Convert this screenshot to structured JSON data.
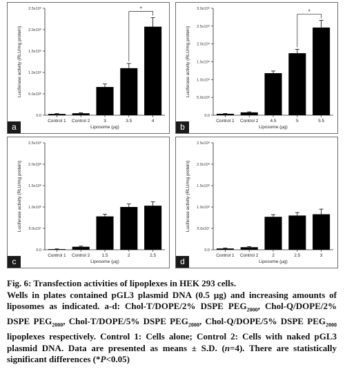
{
  "panels": [
    {
      "letter": "a",
      "ylabel": "Luciferase activity (RLU/mg protein)",
      "xlabel": "Liposome (µg)",
      "ytick_labels": [
        "0.0",
        "5.0x10⁸",
        "1.0x10⁹",
        "1.5x10⁹",
        "2.0x10⁹",
        "2.5x10⁹"
      ],
      "sig_label": "*",
      "color": "#000000"
    },
    {
      "letter": "b",
      "ylabel": "Luciferase activity (RLU/mg protein)",
      "xlabel": "Liposome (µg)",
      "ytick_labels": [
        "0.0",
        "5.0x10⁸",
        "1.0x10⁹",
        "1.5x10⁹",
        "2.0x10⁹",
        "2.5x10⁹",
        "3.0x10⁹"
      ],
      "sig_label": "*",
      "color": "#000000"
    },
    {
      "letter": "c",
      "ylabel": "Luciferase activity (RLU/mg protein)",
      "xlabel": "Liposome (µg)",
      "ytick_labels": [
        "0.0",
        "5.0x10⁷",
        "1.0x10⁸",
        "1.5x10⁸",
        "2.0x10⁸",
        "2.5x10⁸"
      ],
      "sig_label": "",
      "color": "#000000"
    },
    {
      "letter": "d",
      "ylabel": "Luciferase activity (RLU/mg protein)",
      "xlabel": "Liposome (µg)",
      "ytick_labels": [
        "0.0",
        "5.0x10⁷",
        "1.0x10⁸",
        "1.5x10⁸",
        "2.0x10⁸",
        "2.5x10⁸"
      ],
      "sig_label": "",
      "color": "#000000"
    }
  ],
  "chart_data": [
    {
      "type": "bar",
      "categories": [
        "Control 1",
        "Control 2",
        "3",
        "3.5",
        "4"
      ],
      "values": [
        30000000,
        45000000,
        660000000,
        1100000000,
        2070000000
      ],
      "errors": [
        8000000,
        10000000,
        70000000,
        110000000,
        210000000
      ],
      "ylim": [
        0,
        2500000000
      ],
      "yticks": [
        0,
        500000000,
        1000000000,
        1500000000,
        2000000000,
        2500000000
      ],
      "xlabel": "Liposome (µg)",
      "ylabel": "Luciferase activity (RLU/mg protein)",
      "significance": {
        "from": 3,
        "to": 4,
        "label": "*"
      }
    },
    {
      "type": "bar",
      "categories": [
        "Control 1",
        "Control 2",
        "4.5",
        "5",
        "5.5"
      ],
      "values": [
        40000000,
        80000000,
        1180000000,
        1740000000,
        2460000000
      ],
      "errors": [
        10000000,
        15000000,
        60000000,
        110000000,
        200000000
      ],
      "ylim": [
        0,
        3000000000
      ],
      "yticks": [
        0,
        500000000,
        1000000000,
        1500000000,
        2000000000,
        2500000000,
        3000000000
      ],
      "xlabel": "Liposome (µg)",
      "ylabel": "Luciferase activity (RLU/mg protein)",
      "significance": {
        "from": 3,
        "to": 4,
        "label": "*"
      }
    },
    {
      "type": "bar",
      "categories": [
        "Control 1",
        "Control 2",
        "1.5",
        "2",
        "2.5"
      ],
      "values": [
        1500000,
        7000000,
        78000000,
        100000000,
        103000000
      ],
      "errors": [
        500000,
        1500000,
        5000000,
        7000000,
        9000000
      ],
      "ylim": [
        0,
        250000000
      ],
      "yticks": [
        0,
        50000000,
        100000000,
        150000000,
        200000000,
        250000000
      ],
      "xlabel": "Liposome (µg)",
      "ylabel": "Luciferase activity (RLU/mg protein)"
    },
    {
      "type": "bar",
      "categories": [
        "Control 1",
        "Control 2",
        "2",
        "2.5",
        "3"
      ],
      "values": [
        3000000,
        6000000,
        77000000,
        80000000,
        83000000
      ],
      "errors": [
        1000000,
        1500000,
        5000000,
        7000000,
        12000000
      ],
      "ylim": [
        0,
        250000000
      ],
      "yticks": [
        0,
        50000000,
        100000000,
        150000000,
        200000000,
        250000000
      ],
      "xlabel": "Liposome (µg)",
      "ylabel": "Luciferase activity (RLU/mg protein)"
    }
  ],
  "caption": {
    "fig_label": "Fig. 6",
    "title": ": Transfection activities of lipoplexes in HEK 293 cells.",
    "body_1": "Wells in plates contained pGL3 plasmid DNA (0.5 µg) and increasing amounts of liposomes as indicated. a-d: Chol-T/DOPE/2% DSPE PEG",
    "sub_1": "2000",
    "body_2": ", Chol-Q/DOPE/2% DSPE PEG",
    "sub_2": "2000",
    "body_3": ", Chol-T/DOPE/5% DSPE PEG",
    "sub_3": "2000",
    "body_4": ", Chol-Q/DOPE/5% DSPE PEG",
    "sub_4": "2000",
    "body_5": " lipoplexes respectively. Control 1: Cells alone; Control 2: Cells with naked pGL3 plasmid DNA. Data are presented as means ± S.D. (",
    "n_italic": "n",
    "body_6": "=4). There are statistically significant differences (*",
    "p_italic": "P",
    "body_7": "<0.05)"
  }
}
